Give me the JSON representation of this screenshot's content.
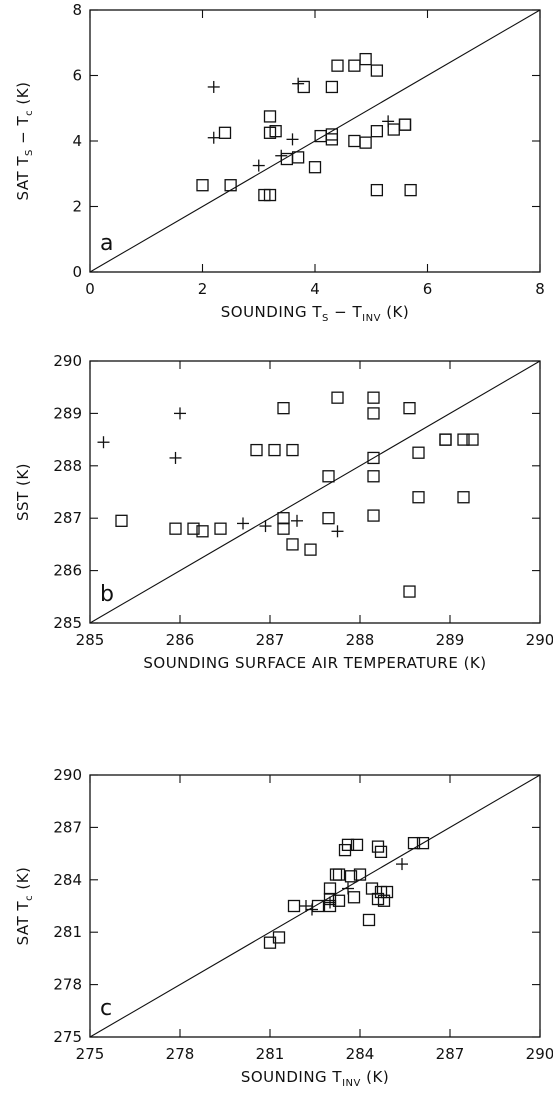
{
  "chart_data": [
    {
      "type": "scatter",
      "panel_label": "a",
      "xlabel": {
        "main": "SOUNDING T",
        "sub1": "S",
        "mid": " − T",
        "sub2": "INV",
        "unit": " (K)"
      },
      "ylabel": {
        "main": "SAT T",
        "sub1": "S",
        "mid": " − T",
        "sub2": "c",
        "unit": " (K)"
      },
      "xlim": [
        0,
        8
      ],
      "ylim": [
        0,
        8
      ],
      "xticks": [
        0,
        2,
        4,
        6,
        8
      ],
      "yticks": [
        0,
        2,
        4,
        6,
        8
      ],
      "one_to_one_line": true,
      "series": [
        {
          "marker": "square",
          "points": [
            [
              2.0,
              2.65
            ],
            [
              2.4,
              4.25
            ],
            [
              2.5,
              2.65
            ],
            [
              3.1,
              2.35
            ],
            [
              3.2,
              2.35
            ],
            [
              3.2,
              4.75
            ],
            [
              3.2,
              4.25
            ],
            [
              3.3,
              4.3
            ],
            [
              3.5,
              3.45
            ],
            [
              3.7,
              3.5
            ],
            [
              3.8,
              5.65
            ],
            [
              4.0,
              3.2
            ],
            [
              4.1,
              4.15
            ],
            [
              4.3,
              4.2
            ],
            [
              4.3,
              4.05
            ],
            [
              4.3,
              5.65
            ],
            [
              4.4,
              6.3
            ],
            [
              4.7,
              6.3
            ],
            [
              4.7,
              4.0
            ],
            [
              4.9,
              3.95
            ],
            [
              4.9,
              6.5
            ],
            [
              5.1,
              6.15
            ],
            [
              5.1,
              4.3
            ],
            [
              5.1,
              2.5
            ],
            [
              5.4,
              4.35
            ],
            [
              5.6,
              4.5
            ],
            [
              5.6,
              4.5
            ],
            [
              5.7,
              2.5
            ]
          ]
        },
        {
          "marker": "plus",
          "points": [
            [
              2.2,
              5.65
            ],
            [
              2.2,
              4.1
            ],
            [
              3.0,
              3.25
            ],
            [
              3.4,
              3.55
            ],
            [
              3.6,
              4.05
            ],
            [
              3.7,
              5.75
            ],
            [
              5.3,
              4.6
            ]
          ]
        }
      ]
    },
    {
      "type": "scatter",
      "panel_label": "b",
      "xlabel": {
        "text": "SOUNDING SURFACE AIR TEMPERATURE (K)"
      },
      "ylabel": {
        "text": "SST (K)"
      },
      "xlim": [
        285,
        290
      ],
      "ylim": [
        285,
        290
      ],
      "xticks": [
        285,
        286,
        287,
        288,
        289,
        290
      ],
      "yticks": [
        285,
        286,
        287,
        288,
        289,
        290
      ],
      "one_to_one_line": true,
      "series": [
        {
          "marker": "square",
          "points": [
            [
              285.35,
              286.95
            ],
            [
              285.95,
              286.8
            ],
            [
              286.15,
              286.8
            ],
            [
              286.25,
              286.75
            ],
            [
              286.45,
              286.8
            ],
            [
              286.85,
              288.3
            ],
            [
              287.05,
              288.3
            ],
            [
              287.15,
              289.1
            ],
            [
              287.15,
              287.0
            ],
            [
              287.15,
              286.8
            ],
            [
              287.25,
              288.3
            ],
            [
              287.25,
              286.5
            ],
            [
              287.45,
              286.4
            ],
            [
              287.65,
              287.8
            ],
            [
              287.65,
              287.0
            ],
            [
              287.75,
              289.3
            ],
            [
              288.15,
              289.3
            ],
            [
              288.15,
              289.0
            ],
            [
              288.15,
              288.15
            ],
            [
              288.15,
              287.8
            ],
            [
              288.15,
              287.05
            ],
            [
              288.55,
              289.1
            ],
            [
              288.55,
              285.6
            ],
            [
              288.65,
              288.25
            ],
            [
              288.65,
              287.4
            ],
            [
              288.95,
              288.5
            ],
            [
              288.95,
              288.5
            ],
            [
              289.15,
              288.5
            ],
            [
              289.25,
              288.5
            ],
            [
              289.15,
              287.4
            ]
          ]
        },
        {
          "marker": "plus",
          "points": [
            [
              285.15,
              288.45
            ],
            [
              285.95,
              288.15
            ],
            [
              286.0,
              289.0
            ],
            [
              286.7,
              286.9
            ],
            [
              286.95,
              286.85
            ],
            [
              287.3,
              286.95
            ],
            [
              287.75,
              286.75
            ]
          ]
        }
      ]
    },
    {
      "type": "scatter",
      "panel_label": "c",
      "xlabel": {
        "main": "SOUNDING T",
        "sub1": "INV",
        "unit": " (K)"
      },
      "ylabel": {
        "main": "SAT T",
        "sub1": "c",
        "unit": " (K)"
      },
      "xlim": [
        275,
        290
      ],
      "ylim": [
        275,
        290
      ],
      "xticks": [
        275,
        278,
        281,
        284,
        287,
        290
      ],
      "yticks": [
        275,
        278,
        281,
        284,
        287,
        290
      ],
      "one_to_one_line": true,
      "series": [
        {
          "marker": "square",
          "points": [
            [
              281.0,
              280.4
            ],
            [
              281.3,
              280.7
            ],
            [
              281.8,
              282.5
            ],
            [
              282.6,
              282.5
            ],
            [
              283.0,
              282.5
            ],
            [
              283.0,
              282.9
            ],
            [
              283.0,
              283.5
            ],
            [
              283.2,
              284.3
            ],
            [
              283.3,
              284.3
            ],
            [
              283.3,
              282.8
            ],
            [
              283.5,
              285.7
            ],
            [
              283.6,
              286.0
            ],
            [
              283.7,
              284.2
            ],
            [
              283.8,
              283.0
            ],
            [
              283.9,
              286.0
            ],
            [
              284.0,
              284.3
            ],
            [
              284.3,
              281.7
            ],
            [
              284.4,
              283.5
            ],
            [
              284.6,
              285.9
            ],
            [
              284.6,
              282.9
            ],
            [
              284.7,
              285.6
            ],
            [
              284.7,
              283.3
            ],
            [
              284.8,
              282.8
            ],
            [
              284.9,
              283.3
            ],
            [
              285.8,
              286.1
            ],
            [
              286.1,
              286.1
            ]
          ]
        },
        {
          "marker": "plus",
          "points": [
            [
              282.2,
              282.5
            ],
            [
              282.4,
              282.3
            ],
            [
              283.0,
              282.7
            ],
            [
              283.6,
              283.5
            ],
            [
              285.4,
              284.9
            ]
          ]
        }
      ]
    }
  ]
}
